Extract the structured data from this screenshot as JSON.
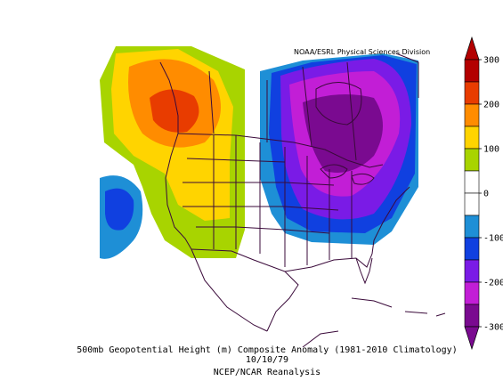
{
  "map": {
    "credit": "NOAA/ESRL Physical Sciences Division",
    "caption_title": "500mb Geopotential Height (m) Composite Anomaly (1981-2010 Climatology)",
    "caption_date": "10/10/79",
    "caption_source": "NCEP/NCAR Reanalysis",
    "variable": "500mb Geopotential Height anomaly",
    "units": "m"
  },
  "colorbar": {
    "ticks": [
      "300",
      "200",
      "100",
      "0",
      "-100",
      "-200",
      "-300"
    ],
    "bins": [
      {
        "label": "above 250",
        "color": "#b30000"
      },
      {
        "label": "200 to 250",
        "color": "#e83c00"
      },
      {
        "label": "150 to 200",
        "color": "#ff8c00"
      },
      {
        "label": "100 to 150",
        "color": "#ffd400"
      },
      {
        "label": "50 to 100",
        "color": "#a8d400"
      },
      {
        "label": "0 to 50",
        "color": "#ffffff"
      },
      {
        "label": "-50 to 0",
        "color": "#ffffff"
      },
      {
        "label": "-100 to -50",
        "color": "#1e8fd6"
      },
      {
        "label": "-150 to -100",
        "color": "#1040e0"
      },
      {
        "label": "-200 to -150",
        "color": "#7a1be6"
      },
      {
        "label": "-250 to -200",
        "color": "#c21ed6"
      },
      {
        "label": "below -250",
        "color": "#7a0a90"
      }
    ]
  }
}
